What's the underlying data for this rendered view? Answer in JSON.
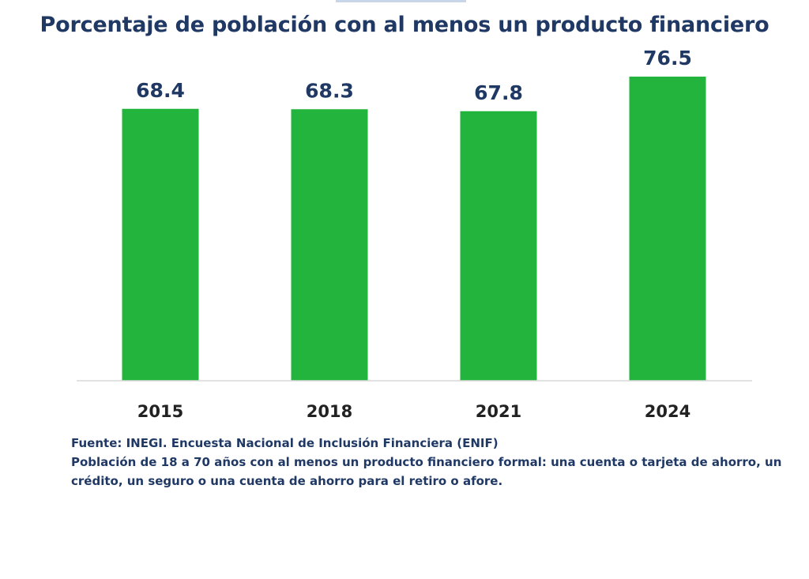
{
  "chart_data": {
    "type": "bar",
    "title": "Porcentaje de población con al menos un producto financiero",
    "categories": [
      "2015",
      "2018",
      "2021",
      "2024"
    ],
    "values": [
      68.4,
      68.3,
      67.8,
      76.5
    ],
    "data_labels": [
      "68.4",
      "68.3",
      "67.8",
      "76.5"
    ],
    "xlabel": "",
    "ylabel": "",
    "grid": false,
    "legend": "none",
    "bar_color": "#22b43c",
    "label_color": "#1f3864"
  },
  "footer": {
    "source": "Fuente: INEGI. Encuesta Nacional de Inclusión Financiera (ENIF)",
    "note": "Población de 18 a 70 años con al menos un producto financiero formal: una cuenta o tarjeta de ahorro, un crédito, un seguro o una cuenta de ahorro para el retiro o afore."
  }
}
